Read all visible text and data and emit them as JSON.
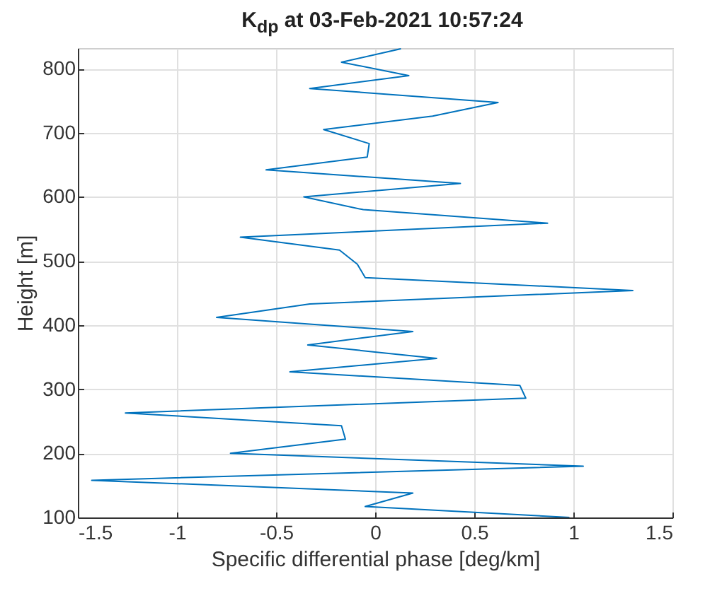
{
  "chart_data": {
    "type": "line",
    "title": "K$_{dp}$ at 03-Feb-2021 10:57:24",
    "xlabel": "Specific differential phase [deg/km]",
    "ylabel": "Height [m]",
    "series": [
      {
        "color": "#0072bd",
        "x": [
          0.98,
          -0.05,
          0.19,
          -1.43,
          1.05,
          -0.73,
          -0.15,
          -0.17,
          -1.26,
          0.76,
          0.73,
          -0.43,
          0.31,
          -0.34,
          0.19,
          -0.8,
          -0.33,
          1.3,
          -0.05,
          -0.09,
          -0.18,
          -0.68,
          0.87,
          -0.06,
          -0.36,
          0.43,
          -0.55,
          -0.04,
          -0.03,
          -0.26,
          0.29,
          0.62,
          -0.33,
          0.17,
          -0.17,
          0.13
        ],
        "values": [
          100,
          117,
          138,
          158,
          180,
          200,
          222,
          243,
          263,
          286,
          306,
          327,
          348,
          369,
          390,
          412,
          433,
          454,
          474,
          495,
          517,
          537,
          559,
          580,
          600,
          621,
          642,
          662,
          683,
          705,
          726,
          747,
          769,
          789,
          810,
          831
        ]
      }
    ],
    "xlim": [
      -1.5,
      1.5
    ],
    "xticks": [
      -1.5,
      -1,
      -0.5,
      0,
      0.5,
      1,
      1.5
    ],
    "ylim": [
      100,
      832
    ],
    "yticks": [
      100,
      200,
      300,
      400,
      500,
      600,
      700,
      800
    ],
    "grid": true
  }
}
